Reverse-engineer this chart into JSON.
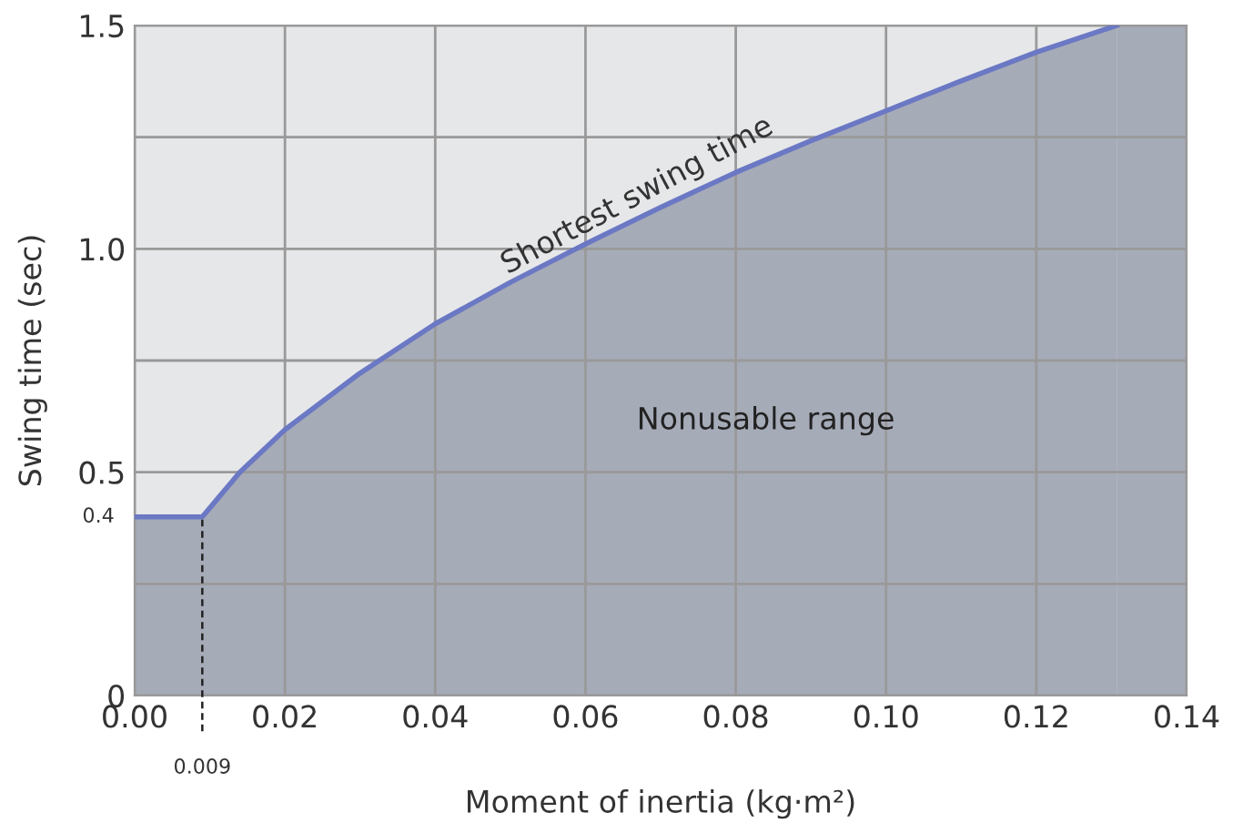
{
  "chart_data": {
    "type": "area",
    "xlabel": "Moment of inertia (kg·m²)",
    "ylabel": "Swing time (sec)",
    "xlim": [
      0,
      0.14
    ],
    "ylim": [
      0,
      1.5
    ],
    "xticks": [
      {
        "value": 0,
        "label": "0.00"
      },
      {
        "value": 0.02,
        "label": "0.02"
      },
      {
        "value": 0.04,
        "label": "0.04"
      },
      {
        "value": 0.06,
        "label": "0.06"
      },
      {
        "value": 0.08,
        "label": "0.08"
      },
      {
        "value": 0.1,
        "label": "0.10"
      },
      {
        "value": 0.12,
        "label": "0.12"
      },
      {
        "value": 0.14,
        "label": "0.14"
      }
    ],
    "yticks": [
      0,
      {
        "value": 0.25,
        "label": null
      },
      0.5,
      {
        "value": 0.75,
        "label": null
      },
      {
        "value": 1.0,
        "label": "1.0"
      },
      {
        "value": 1.25,
        "label": null
      },
      1.5
    ],
    "grid": true,
    "series": [
      {
        "color": "#6b78c4",
        "x": [
          0,
          0.009,
          0.011,
          0.014,
          0.02,
          0.0296,
          0.04,
          0.05,
          0.06,
          0.07,
          0.08,
          0.09,
          0.1,
          0.11,
          0.12,
          0.1307
        ],
        "values": [
          0.4,
          0.4,
          0.44,
          0.5,
          0.595,
          0.717,
          0.832,
          0.925,
          1.011,
          1.093,
          1.171,
          1.242,
          1.309,
          1.376,
          1.44,
          1.5
        ]
      }
    ],
    "bands": [
      {
        "axis": "x",
        "from": 0.1307,
        "to": 0.14,
        "color": "#a6abb8"
      }
    ],
    "ref_lines": [
      {
        "axis": "x",
        "value": 0.009,
        "label": "0.009",
        "line_style": "dashed",
        "color": "#222222"
      }
    ],
    "annotations": [
      {
        "text": "Shortest swing time",
        "x": 0.05,
        "y": 0.93
      },
      {
        "text": "0.4",
        "x": 0,
        "y": 0.4
      },
      "Nonusable range"
    ]
  }
}
